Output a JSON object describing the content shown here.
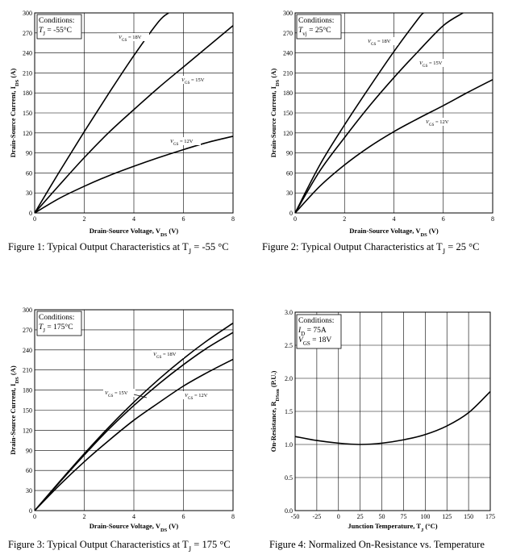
{
  "chart_data": [
    {
      "type": "line",
      "title": "Figure 1: Typical Output Characteristics at T",
      "title_sub": "J",
      "title_suffix": " = -55 °C",
      "xlabel": "Drain-Source Voltage, V",
      "xlabel_sub": "DS",
      "xlabel_unit": " (V)",
      "ylabel": "Drain-Source Current, I",
      "ylabel_sub": "DS",
      "ylabel_unit": " (A)",
      "xlim": [
        0,
        8
      ],
      "ylim": [
        0,
        300
      ],
      "x_ticks": [
        "0",
        "2",
        "4",
        "6",
        "8"
      ],
      "y_ticks": [
        "0",
        "30",
        "60",
        "90",
        "120",
        "150",
        "180",
        "210",
        "240",
        "270",
        "300"
      ],
      "grid": true,
      "conditions": [
        "Conditions:",
        "T",
        "J",
        " = -55°C"
      ],
      "series": [
        {
          "name": "VGS = 18V",
          "x": [
            0,
            1,
            2,
            3,
            4,
            5,
            5.4
          ],
          "y": [
            0,
            62,
            122,
            180,
            236,
            287,
            300
          ]
        },
        {
          "name": "VGS = 15V",
          "x": [
            0,
            1,
            2,
            3,
            4,
            5,
            6,
            7,
            8
          ],
          "y": [
            0,
            42,
            83,
            121,
            155,
            188,
            219,
            250,
            281
          ]
        },
        {
          "name": "VGS = 12V",
          "x": [
            0,
            1,
            2,
            3,
            4,
            5,
            6,
            7,
            8
          ],
          "y": [
            0,
            22,
            40,
            56,
            70,
            83,
            95,
            106,
            115
          ]
        }
      ],
      "curve_labels": [
        "V",
        "GS",
        " = 18V",
        "V",
        "GS",
        " = 15V",
        "V",
        "GS",
        " = 12V"
      ]
    },
    {
      "type": "line",
      "title": "Figure 2: Typical Output Characteristics at T",
      "title_sub": "J",
      "title_suffix": " = 25 °C",
      "xlabel": "Drain-Source Voltage, V",
      "xlabel_sub": "DS",
      "xlabel_unit": " (V)",
      "ylabel": "Drain-Source Current, I",
      "ylabel_sub": "DS",
      "ylabel_unit": " (A)",
      "xlim": [
        0,
        8
      ],
      "ylim": [
        0,
        300
      ],
      "x_ticks": [
        "0",
        "2",
        "4",
        "6",
        "8"
      ],
      "y_ticks": [
        "0",
        "30",
        "60",
        "90",
        "120",
        "150",
        "180",
        "210",
        "240",
        "270",
        "300"
      ],
      "grid": true,
      "conditions": [
        "Conditions:",
        "T",
        "vj",
        " = 25°C"
      ],
      "series": [
        {
          "name": "VGS = 18V",
          "x": [
            0,
            1,
            2,
            3,
            4,
            5,
            5.2
          ],
          "y": [
            0,
            72,
            132,
            188,
            242,
            292,
            300
          ]
        },
        {
          "name": "VGS = 15V",
          "x": [
            0,
            1,
            2,
            3,
            4,
            5,
            6,
            6.8
          ],
          "y": [
            0,
            63,
            113,
            160,
            203,
            243,
            281,
            300
          ]
        },
        {
          "name": "VGS = 12V",
          "x": [
            0,
            1,
            2,
            3,
            4,
            5,
            6,
            7,
            8
          ],
          "y": [
            0,
            40,
            72,
            99,
            122,
            142,
            161,
            181,
            200
          ]
        }
      ],
      "curve_labels": [
        "V",
        "GS",
        " = 18V",
        "V",
        "GS",
        " = 15V",
        "V",
        "GS",
        " = 12V"
      ]
    },
    {
      "type": "line",
      "title": "Figure 3: Typical Output Characteristics at T",
      "title_sub": "J",
      "title_suffix": " = 175 °C",
      "xlabel": "Drain-Source Voltage, V",
      "xlabel_sub": "DS",
      "xlabel_unit": " (V)",
      "ylabel": "Drain-Source Current, I",
      "ylabel_sub": "DS",
      "ylabel_unit": " (A)",
      "xlim": [
        0,
        8
      ],
      "ylim": [
        0,
        300
      ],
      "x_ticks": [
        "0",
        "2",
        "4",
        "6",
        "8"
      ],
      "y_ticks": [
        "0",
        "30",
        "60",
        "90",
        "120",
        "150",
        "180",
        "210",
        "240",
        "270",
        "300"
      ],
      "grid": true,
      "conditions": [
        "Conditions:",
        "T",
        "J",
        " = 175°C"
      ],
      "series": [
        {
          "name": "VGS = 18V",
          "x": [
            0,
            1,
            2,
            3,
            4,
            5,
            6,
            7,
            8
          ],
          "y": [
            0,
            43,
            85,
            125,
            162,
            196,
            227,
            255,
            280
          ]
        },
        {
          "name": "VGS = 15V",
          "x": [
            0,
            1,
            2,
            3,
            4,
            5,
            6,
            7,
            8
          ],
          "y": [
            0,
            42,
            83,
            122,
            157,
            189,
            218,
            244,
            266
          ]
        },
        {
          "name": "VGS = 12V",
          "x": [
            0,
            1,
            2,
            3,
            4,
            5,
            6,
            7,
            8
          ],
          "y": [
            0,
            38,
            73,
            105,
            135,
            161,
            186,
            207,
            226
          ]
        }
      ],
      "curve_labels": [
        "V",
        "GS",
        " = 18V",
        "V",
        "GS",
        " = 15V",
        "V",
        "GS",
        " = 12V"
      ]
    },
    {
      "type": "line",
      "title": "Figure 4: Normalized On-Resistance vs. Temperature",
      "xlabel": "Junction Temperature, T",
      "xlabel_sub": "J",
      "xlabel_unit": " (°C)",
      "ylabel": "On-Resistance, R",
      "ylabel_sub": "DSon",
      "ylabel_unit": " (P.U.)",
      "xlim": [
        -50,
        175
      ],
      "ylim": [
        0,
        3.0
      ],
      "x_ticks": [
        "-50",
        "-25",
        "0",
        "25",
        "50",
        "75",
        "100",
        "125",
        "150",
        "175"
      ],
      "y_ticks": [
        "0.0",
        "0.5",
        "1.0",
        "1.5",
        "2.0",
        "2.5",
        "3.0"
      ],
      "grid": true,
      "conditions": [
        "Conditions:",
        "I",
        "D",
        " = 75A",
        "V",
        "GS",
        " = 18V"
      ],
      "series": [
        {
          "name": "",
          "x": [
            -50,
            -25,
            0,
            25,
            50,
            75,
            100,
            125,
            150,
            175
          ],
          "y": [
            1.12,
            1.06,
            1.02,
            1.0,
            1.02,
            1.07,
            1.15,
            1.28,
            1.48,
            1.8
          ]
        }
      ]
    }
  ]
}
